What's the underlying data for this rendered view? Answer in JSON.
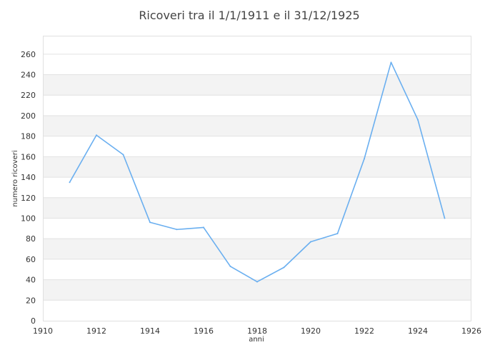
{
  "chart_data": {
    "type": "line",
    "title": "Ricoveri tra il 1/1/1911 e il 31/12/1925",
    "xlabel": "anni",
    "ylabel": "numero ricoveri",
    "xlim": [
      1910,
      1926
    ],
    "ylim": [
      0,
      278
    ],
    "x_ticks": [
      1910,
      1912,
      1914,
      1916,
      1918,
      1920,
      1922,
      1924,
      1926
    ],
    "y_ticks": [
      0,
      20,
      40,
      60,
      80,
      100,
      120,
      140,
      160,
      180,
      200,
      220,
      240,
      260
    ],
    "grid": "horizontal, alternating bands",
    "legend": "none",
    "series": [
      {
        "color": "#6aaff0",
        "x": [
          1911,
          1912,
          1913,
          1914,
          1915,
          1916,
          1917,
          1918,
          1919,
          1920,
          1921,
          1922,
          1923,
          1924,
          1925
        ],
        "y": [
          135,
          181,
          162,
          96,
          89,
          91,
          53,
          38,
          52,
          77,
          85,
          158,
          252,
          196,
          100
        ]
      }
    ]
  }
}
